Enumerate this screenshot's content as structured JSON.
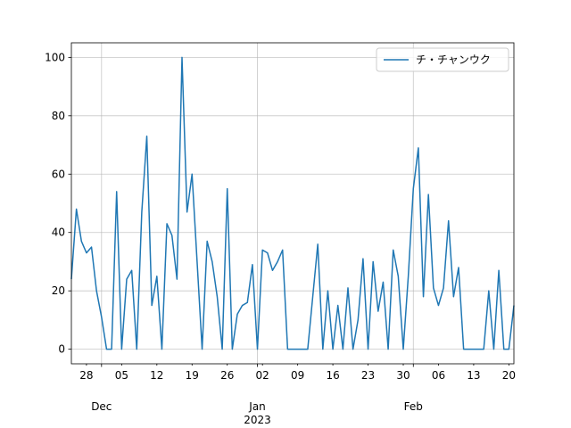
{
  "chart_data": {
    "type": "line",
    "x": [
      "2022-11-25",
      "2022-11-26",
      "2022-11-27",
      "2022-11-28",
      "2022-11-29",
      "2022-11-30",
      "2022-12-01",
      "2022-12-02",
      "2022-12-03",
      "2022-12-04",
      "2022-12-05",
      "2022-12-06",
      "2022-12-07",
      "2022-12-08",
      "2022-12-09",
      "2022-12-10",
      "2022-12-11",
      "2022-12-12",
      "2022-12-13",
      "2022-12-14",
      "2022-12-15",
      "2022-12-16",
      "2022-12-17",
      "2022-12-18",
      "2022-12-19",
      "2022-12-20",
      "2022-12-21",
      "2022-12-22",
      "2022-12-23",
      "2022-12-24",
      "2022-12-25",
      "2022-12-26",
      "2022-12-27",
      "2022-12-28",
      "2022-12-29",
      "2022-12-30",
      "2022-12-31",
      "2023-01-01",
      "2023-01-02",
      "2023-01-03",
      "2023-01-04",
      "2023-01-05",
      "2023-01-06",
      "2023-01-07",
      "2023-01-08",
      "2023-01-09",
      "2023-01-10",
      "2023-01-11",
      "2023-01-12",
      "2023-01-13",
      "2023-01-14",
      "2023-01-15",
      "2023-01-16",
      "2023-01-17",
      "2023-01-18",
      "2023-01-19",
      "2023-01-20",
      "2023-01-21",
      "2023-01-22",
      "2023-01-23",
      "2023-01-24",
      "2023-01-25",
      "2023-01-26",
      "2023-01-27",
      "2023-01-28",
      "2023-01-29",
      "2023-01-30",
      "2023-01-31",
      "2023-02-01",
      "2023-02-02",
      "2023-02-03",
      "2023-02-04",
      "2023-02-05",
      "2023-02-06",
      "2023-02-07",
      "2023-02-08",
      "2023-02-09",
      "2023-02-10",
      "2023-02-11",
      "2023-02-12",
      "2023-02-13",
      "2023-02-14",
      "2023-02-15",
      "2023-02-16",
      "2023-02-17",
      "2023-02-18",
      "2023-02-19",
      "2023-02-20",
      "2023-02-21"
    ],
    "series": [
      {
        "name": "チ・チャンウク",
        "color": "#1f77b4",
        "values": [
          24,
          48,
          37,
          33,
          35,
          20,
          11,
          0,
          0,
          54,
          0,
          24,
          27,
          0,
          47,
          73,
          15,
          25,
          0,
          43,
          39,
          24,
          100,
          47,
          60,
          30,
          0,
          37,
          30,
          18,
          0,
          55,
          0,
          12,
          15,
          16,
          29,
          0,
          34,
          33,
          27,
          30,
          34,
          0,
          0,
          0,
          0,
          0,
          18,
          36,
          0,
          20,
          0,
          15,
          0,
          21,
          0,
          10,
          31,
          0,
          30,
          13,
          23,
          0,
          34,
          25,
          0,
          25,
          55,
          69,
          18,
          53,
          21,
          15,
          21,
          44,
          18,
          28,
          0,
          0,
          0,
          0,
          0,
          20,
          0,
          27,
          0,
          0,
          15
        ]
      }
    ],
    "xlim": [
      "2022-11-25",
      "2023-02-21"
    ],
    "xticks": [
      {
        "value": "2022-11-28",
        "label": "28"
      },
      {
        "value": "2022-12-05",
        "label": "05"
      },
      {
        "value": "2022-12-12",
        "label": "12"
      },
      {
        "value": "2022-12-19",
        "label": "19"
      },
      {
        "value": "2022-12-26",
        "label": "26"
      },
      {
        "value": "2023-01-02",
        "label": "02"
      },
      {
        "value": "2023-01-09",
        "label": "09"
      },
      {
        "value": "2023-01-16",
        "label": "16"
      },
      {
        "value": "2023-01-23",
        "label": "23"
      },
      {
        "value": "2023-01-30",
        "label": "30"
      },
      {
        "value": "2023-02-06",
        "label": "06"
      },
      {
        "value": "2023-02-13",
        "label": "13"
      },
      {
        "value": "2023-02-20",
        "label": "20"
      }
    ],
    "month_ticks": [
      {
        "value": "2022-12-01",
        "label": "Dec"
      },
      {
        "value": "2023-01-01",
        "label": "Jan",
        "year": "2023"
      },
      {
        "value": "2023-02-01",
        "label": "Feb"
      }
    ],
    "ylim": [
      -5,
      105
    ],
    "yticks": [
      0,
      20,
      40,
      60,
      80,
      100
    ],
    "grid": true,
    "legend": "upper right"
  }
}
